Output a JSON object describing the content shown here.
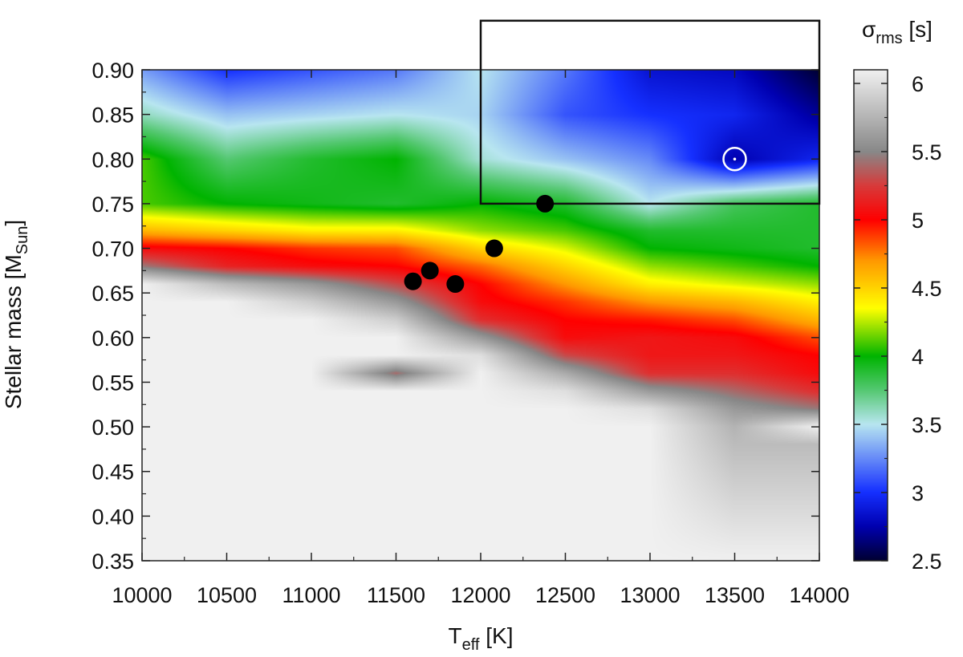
{
  "chart_data": {
    "type": "heatmap",
    "xlabel": {
      "main": "T",
      "sub": "eff",
      "unit": " [K]"
    },
    "ylabel": {
      "main": "Stellar mass [M",
      "sub": "Sun",
      "unit": "]"
    },
    "colorbar_label": {
      "main": "σ",
      "sub": "rms",
      "unit": " [s]"
    },
    "x_ticks": [
      "10000",
      "10500",
      "11000",
      "11500",
      "12000",
      "12500",
      "13000",
      "13500",
      "14000"
    ],
    "y_ticks": [
      "0.35",
      "0.40",
      "0.45",
      "0.50",
      "0.55",
      "0.60",
      "0.65",
      "0.70",
      "0.75",
      "0.80",
      "0.85",
      "0.90"
    ],
    "colorbar_ticks": [
      "2.5",
      "3",
      "3.5",
      "4",
      "4.5",
      "5",
      "5.5",
      "6"
    ],
    "xlim": [
      10000,
      14000
    ],
    "ylim": [
      0.35,
      0.9
    ],
    "zlim": [
      2.5,
      6.1
    ],
    "colormap": [
      {
        "v": 2.5,
        "color": "#000033"
      },
      {
        "v": 2.75,
        "color": "#0000b0"
      },
      {
        "v": 3.0,
        "color": "#1530ff"
      },
      {
        "v": 3.5,
        "color": "#b8e6f0"
      },
      {
        "v": 3.75,
        "color": "#55c872"
      },
      {
        "v": 4.0,
        "color": "#00b400"
      },
      {
        "v": 4.35,
        "color": "#ffff00"
      },
      {
        "v": 4.7,
        "color": "#ff9900"
      },
      {
        "v": 5.0,
        "color": "#ff0000"
      },
      {
        "v": 5.25,
        "color": "#d83a3a"
      },
      {
        "v": 5.5,
        "color": "#888888"
      },
      {
        "v": 6.1,
        "color": "#f0f0f0"
      }
    ],
    "sigma_rms_profile": {
      "teff": [
        10000,
        10500,
        11000,
        11500,
        12000,
        12500,
        13000,
        13500,
        14000
      ],
      "mass": [
        0.9,
        0.85,
        0.8,
        0.75,
        0.72,
        0.7,
        0.68,
        0.66,
        0.64,
        0.62,
        0.6,
        0.58,
        0.56,
        0.54,
        0.52,
        0.5,
        0.48,
        0.35
      ],
      "values": [
        [
          3.3,
          3.0,
          3.1,
          3.2,
          3.5,
          3.2,
          2.85,
          2.8,
          2.5
        ],
        [
          3.6,
          3.4,
          3.45,
          3.5,
          3.45,
          3.1,
          3.0,
          2.95,
          2.7
        ],
        [
          4.1,
          3.75,
          3.9,
          4.0,
          3.55,
          3.4,
          3.25,
          2.75,
          2.95
        ],
        [
          4.1,
          4.0,
          3.95,
          3.9,
          4.0,
          3.9,
          3.5,
          3.8,
          3.9
        ],
        [
          4.6,
          4.5,
          4.4,
          4.4,
          4.2,
          4.1,
          3.9,
          3.9,
          3.9
        ],
        [
          5.05,
          5.0,
          4.9,
          4.85,
          4.5,
          4.3,
          4.0,
          3.95,
          3.9
        ],
        [
          5.45,
          5.15,
          5.05,
          5.0,
          4.8,
          4.5,
          4.2,
          4.1,
          4.0
        ],
        [
          6.1,
          5.8,
          5.6,
          5.3,
          5.0,
          4.7,
          4.4,
          4.3,
          4.2
        ],
        [
          6.1,
          6.1,
          5.9,
          5.6,
          5.05,
          4.9,
          4.7,
          4.6,
          4.4
        ],
        [
          6.1,
          6.1,
          6.1,
          5.9,
          5.2,
          5.0,
          4.95,
          4.85,
          4.6
        ],
        [
          6.1,
          6.1,
          6.1,
          6.1,
          5.6,
          5.05,
          5.1,
          5.05,
          4.85
        ],
        [
          6.1,
          6.1,
          6.1,
          6.1,
          6.0,
          5.3,
          5.1,
          5.1,
          5.0
        ],
        [
          6.1,
          6.1,
          6.1,
          5.4,
          6.1,
          5.7,
          5.2,
          5.2,
          5.05
        ],
        [
          6.1,
          6.1,
          6.1,
          6.1,
          6.1,
          6.0,
          5.6,
          5.4,
          5.2
        ],
        [
          6.1,
          6.1,
          6.1,
          6.1,
          6.1,
          6.1,
          6.0,
          5.6,
          5.45
        ],
        [
          6.1,
          6.1,
          6.1,
          6.1,
          6.1,
          6.1,
          6.1,
          5.75,
          6.1
        ],
        [
          6.1,
          6.1,
          6.1,
          6.1,
          6.1,
          6.1,
          6.1,
          5.8,
          5.8
        ],
        [
          6.1,
          6.1,
          6.1,
          6.1,
          6.1,
          6.1,
          6.1,
          6.1,
          6.1
        ]
      ]
    },
    "markers": [
      {
        "teff": 11600,
        "mass": 0.663
      },
      {
        "teff": 11700,
        "mass": 0.675
      },
      {
        "teff": 11850,
        "mass": 0.66
      },
      {
        "teff": 12080,
        "mass": 0.7
      },
      {
        "teff": 12380,
        "mass": 0.75
      }
    ],
    "best_fit": {
      "teff": 13500,
      "mass": 0.8
    },
    "region_box": {
      "teff_min": 12000,
      "teff_max": 14000,
      "mass_min": 0.75,
      "mass_max": 0.955
    }
  }
}
